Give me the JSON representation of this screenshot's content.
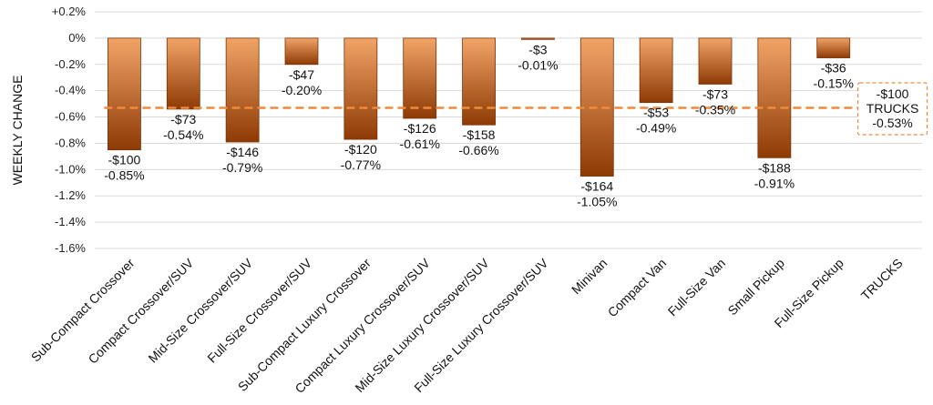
{
  "chart_data": {
    "type": "bar",
    "ylabel": "WEEKLY CHANGE",
    "ylim": [
      -1.6,
      0.2
    ],
    "yticks": [
      0.2,
      0,
      -0.2,
      -0.4,
      -0.6,
      -0.8,
      -1.0,
      -1.2,
      -1.4,
      -1.6
    ],
    "ytick_labels": [
      "+0.2%",
      "0%",
      "-0.2%",
      "-0.4%",
      "-0.6%",
      "-0.8%",
      "-1.0%",
      "-1.2%",
      "-1.4%",
      "-1.6%"
    ],
    "grid": true,
    "categories": [
      "Sub-Compact Crossover",
      "Compact Crossover/SUV",
      "Mid-Size Crossover/SUV",
      "Full-Size Crossover/SUV",
      "Sub-Compact Luxury Crossover",
      "Compact Luxury Crossover/SUV",
      "Mid-Size Luxury Crossover/SUV",
      "Full-Size Luxury Crossover/SUV",
      "Minivan",
      "Compact Van",
      "Full-Size Van",
      "Small Pickup",
      "Full-Size Pickup",
      "TRUCKS"
    ],
    "values": [
      -0.85,
      -0.54,
      -0.79,
      -0.2,
      -0.77,
      -0.61,
      -0.66,
      -0.01,
      -1.05,
      -0.49,
      -0.35,
      -0.91,
      -0.15,
      null
    ],
    "dollar_labels": [
      "-$100",
      "-$73",
      "-$146",
      "-$47",
      "-$120",
      "-$126",
      "-$158",
      "-$3",
      "-$164",
      "-$53",
      "-$73",
      "-$188",
      "-$36",
      "-$100"
    ],
    "percent_labels": [
      "-0.85%",
      "-0.54%",
      "-0.79%",
      "-0.20%",
      "-0.77%",
      "-0.61%",
      "-0.66%",
      "-0.01%",
      "-1.05%",
      "-0.49%",
      "-0.35%",
      "-0.91%",
      "-0.15%",
      "-0.53%"
    ],
    "reference_line": {
      "value": -0.53,
      "labels": [
        "-$100",
        "TRUCKS",
        "-0.53%"
      ],
      "color": "#ee8a3c"
    },
    "bar_color_top": "#f2a467",
    "bar_color_bottom": "#8e3a05"
  }
}
